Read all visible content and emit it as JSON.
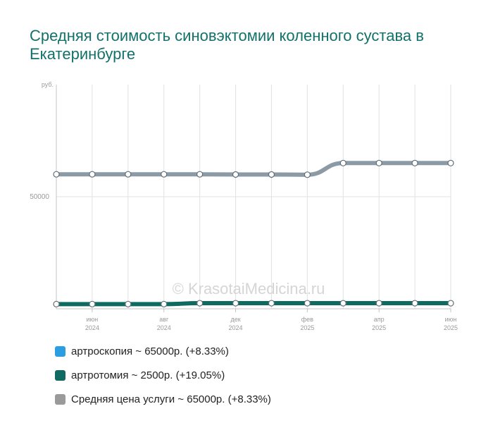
{
  "title": "Средняя стоимость синовэктомии коленного сустава в Екатеринбурге",
  "watermark": "© KrasotaiMedicina.ru",
  "chart_data": {
    "type": "line",
    "y_unit_label": "руб.",
    "y_ticks": [
      {
        "value": 50000,
        "label": "50000"
      }
    ],
    "ylim": [
      0,
      100000
    ],
    "x_count": 12,
    "x_ticks": [
      {
        "index": 1,
        "line1": "июн",
        "line2": "2024"
      },
      {
        "index": 3,
        "line1": "авг",
        "line2": "2024"
      },
      {
        "index": 5,
        "line1": "дек",
        "line2": "2024"
      },
      {
        "index": 7,
        "line1": "фев",
        "line2": "2025"
      },
      {
        "index": 9,
        "line1": "апр",
        "line2": "2025"
      },
      {
        "index": 11,
        "line1": "июн",
        "line2": "2025"
      }
    ],
    "grid": true,
    "series": [
      {
        "name": "Средняя цена услуги",
        "color": "#8c9aa5",
        "values": [
          60000,
          60000,
          60000,
          60000,
          60000,
          59900,
          59900,
          59800,
          65000,
          65000,
          65000,
          65000
        ]
      },
      {
        "name": "артротомия",
        "color": "#0f6b60",
        "values": [
          2100,
          2100,
          2100,
          2100,
          2500,
          2500,
          2500,
          2500,
          2500,
          2500,
          2500,
          2500
        ]
      }
    ]
  },
  "legend": [
    {
      "label": "артроскопия ~ 65000р. (+8.33%)",
      "color": "#2a9ee0"
    },
    {
      "label": "артротомия ~ 2500р. (+19.05%)",
      "color": "#0f6b60"
    },
    {
      "label": "Средняя цена услуги ~ 65000р. (+8.33%)",
      "color": "#9a9a9a"
    }
  ]
}
